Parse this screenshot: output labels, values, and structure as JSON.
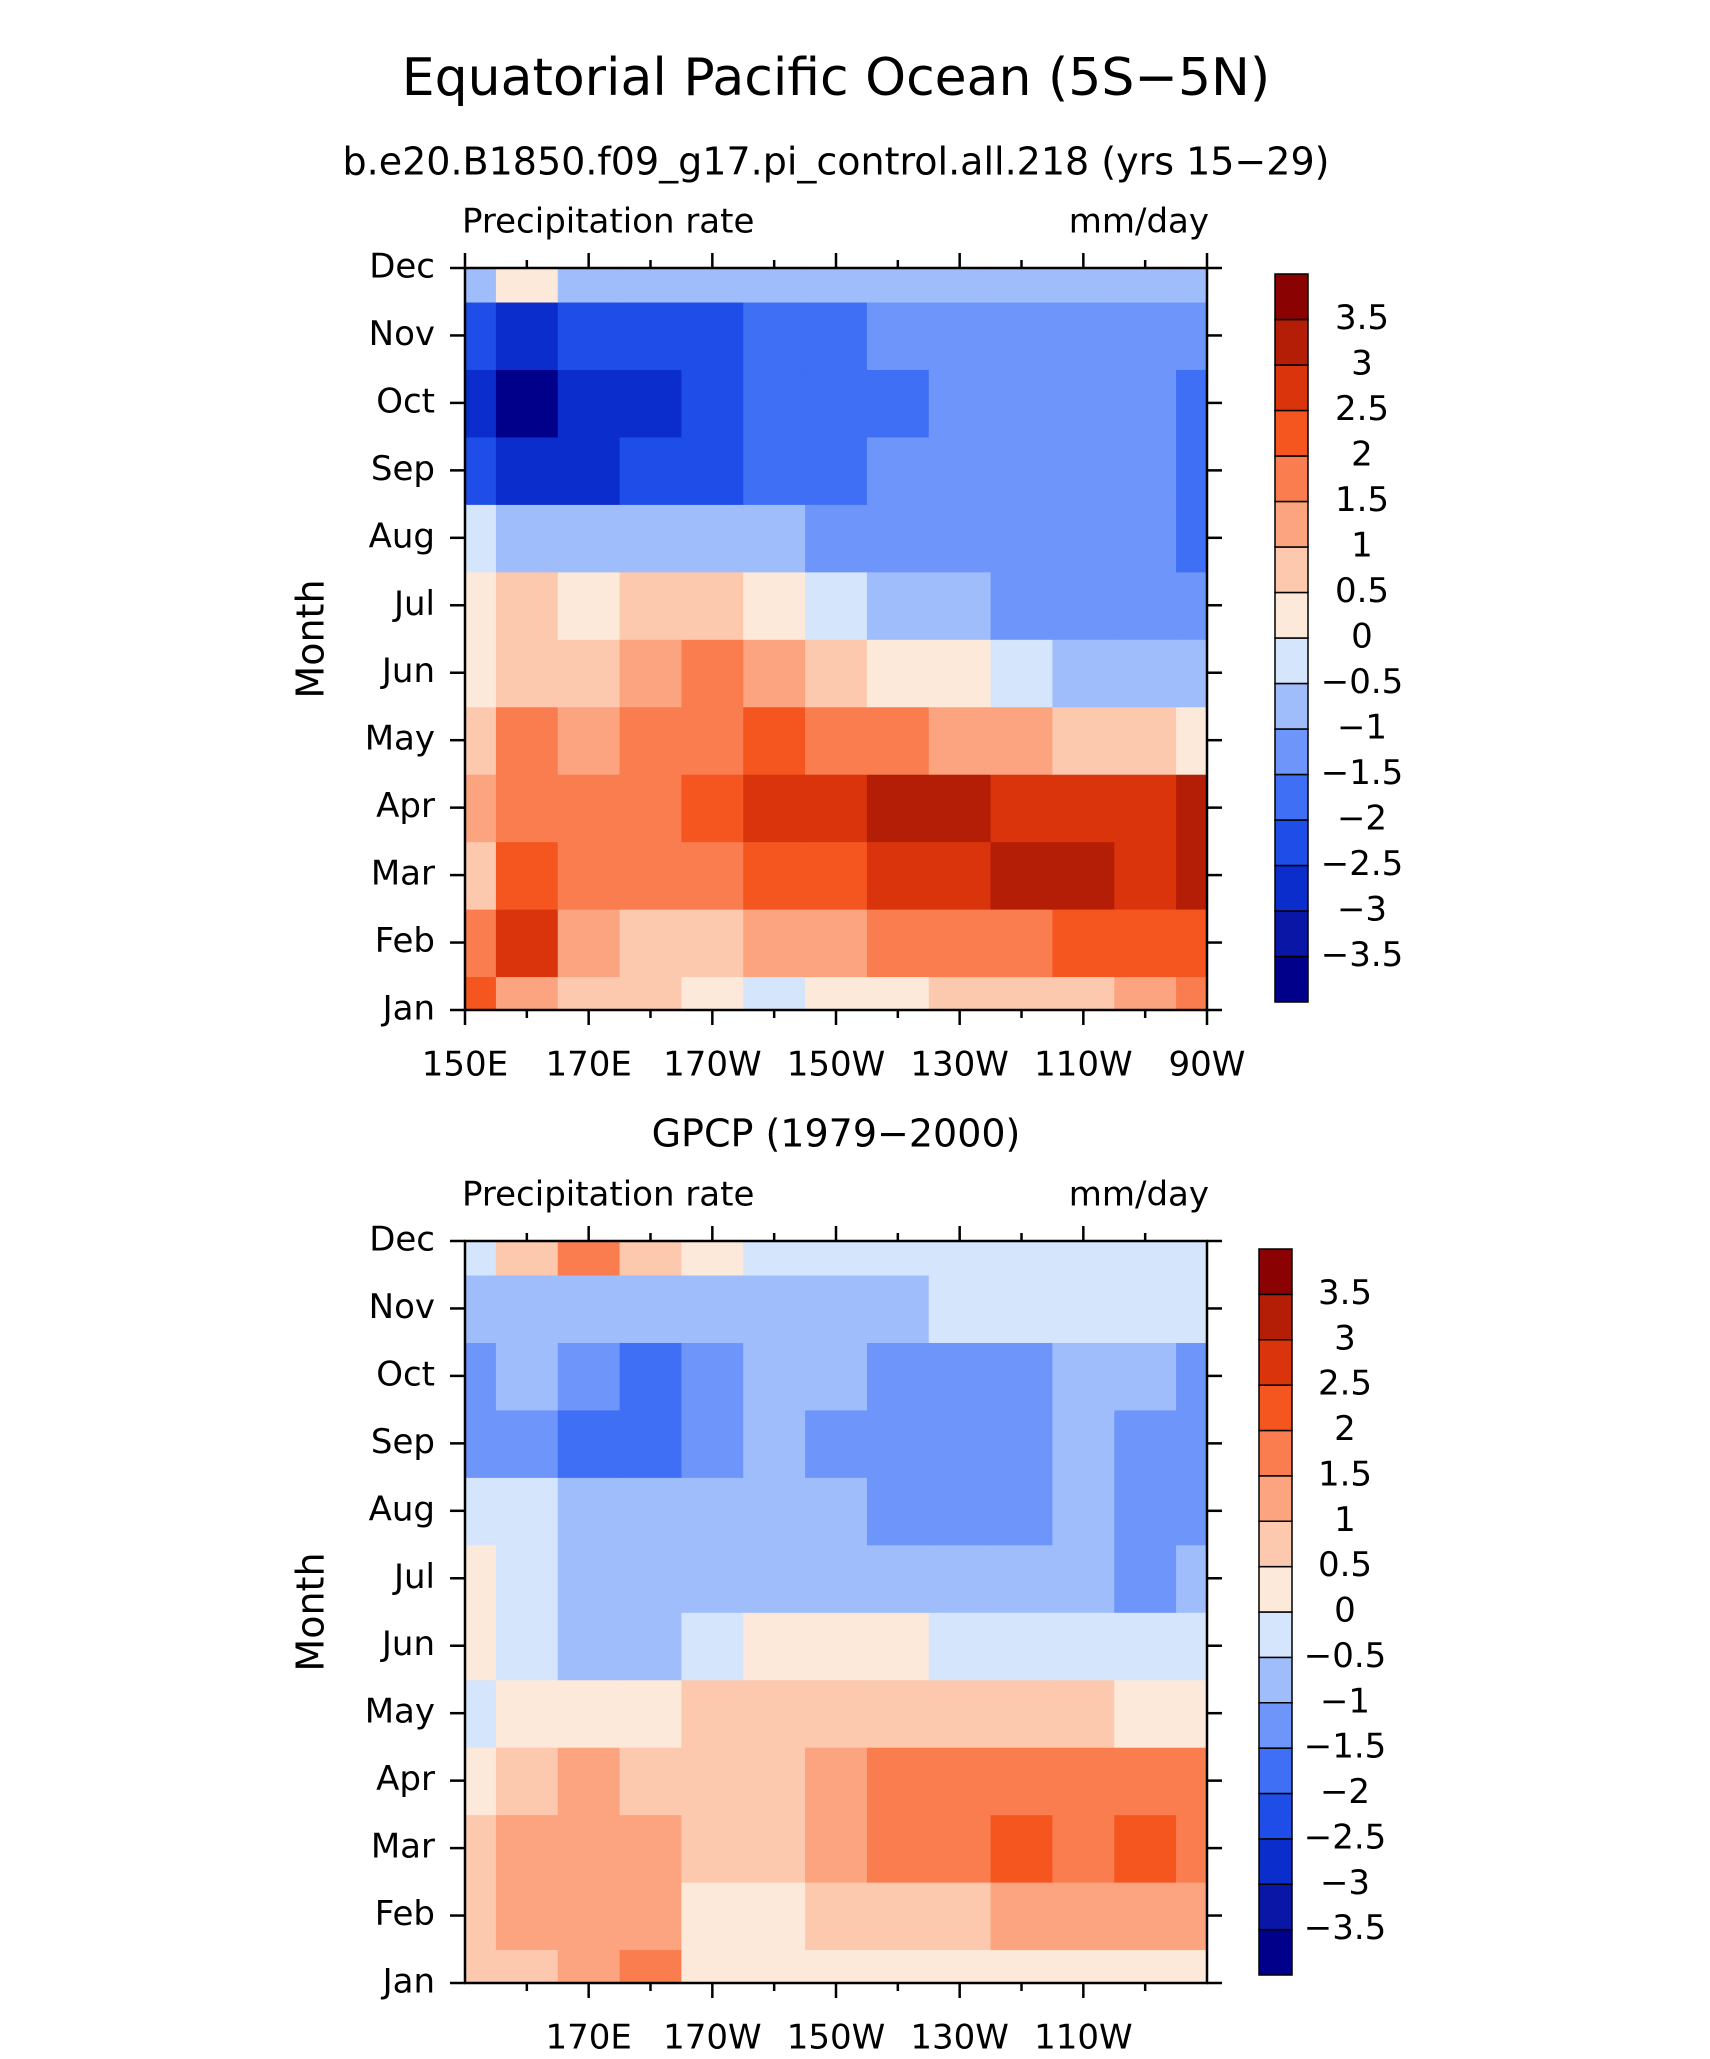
{
  "title": "Equatorial Pacific Ocean (5S−5N)",
  "chart_data": [
    {
      "type": "contour",
      "title": "b.e20.B1850.f09_g17.pi_control.all.218 (yrs 15−29)",
      "left_label": "Precipitation rate",
      "right_label": "mm/day",
      "ylabel": "Month",
      "categories": [
        "Jan",
        "Feb",
        "Mar",
        "Apr",
        "May",
        "Jun",
        "Jul",
        "Aug",
        "Sep",
        "Oct",
        "Nov",
        "Dec"
      ],
      "x": [
        150,
        160,
        170,
        180,
        190,
        200,
        210,
        220,
        230,
        240,
        250,
        260,
        270
      ],
      "xlim": [
        150,
        270
      ],
      "xticks": [
        {
          "value": 150,
          "label": "150E"
        },
        {
          "value": 170,
          "label": "170E"
        },
        {
          "value": 190,
          "label": "170W"
        },
        {
          "value": 210,
          "label": "150W"
        },
        {
          "value": 230,
          "label": "130W"
        },
        {
          "value": 250,
          "label": "110W"
        },
        {
          "value": 270,
          "label": "90W"
        }
      ],
      "xminorticks": [
        160,
        180,
        200,
        220,
        240,
        260
      ],
      "values": [
        [
          2,
          1,
          0.5,
          0.5,
          0,
          -0.3,
          0.2,
          0.3,
          0.5,
          0.7,
          0.8,
          1,
          1.5
        ],
        [
          1.5,
          2.8,
          1.2,
          0.8,
          0.8,
          1,
          1.2,
          1.5,
          1.7,
          1.8,
          2,
          2,
          2.2
        ],
        [
          0.5,
          2,
          1.8,
          1.7,
          1.8,
          2,
          2.3,
          2.5,
          2.8,
          3,
          3.1,
          2.5,
          3
        ],
        [
          1,
          1.8,
          1.5,
          1.7,
          2.2,
          2.5,
          2.8,
          3.1,
          3,
          2.7,
          2.6,
          2.5,
          3
        ],
        [
          0.8,
          1.7,
          1.4,
          1.6,
          1.8,
          2,
          1.8,
          1.6,
          1.3,
          1,
          0.7,
          0.5,
          0.3
        ],
        [
          0,
          0.6,
          0.8,
          1.3,
          1.6,
          1.2,
          0.8,
          0.4,
          0.1,
          -0.3,
          -0.6,
          -0.9,
          -0.7
        ],
        [
          0.3,
          0.5,
          0.2,
          0.6,
          0.7,
          0.3,
          -0.2,
          -0.6,
          -0.9,
          -1.1,
          -1.3,
          -1.5,
          -1.3
        ],
        [
          -0.3,
          -0.6,
          -0.9,
          -0.8,
          -0.7,
          -0.9,
          -1.1,
          -1.2,
          -1.3,
          -1.4,
          -1.4,
          -1.3,
          -2
        ],
        [
          -2.2,
          -2.8,
          -2.7,
          -2.4,
          -2.2,
          -1.9,
          -1.6,
          -1.5,
          -1.4,
          -1.3,
          -1.3,
          -1.3,
          -1.7
        ],
        [
          -2.6,
          -3.6,
          -3,
          -2.6,
          -2.3,
          -2,
          -1.8,
          -1.6,
          -1.4,
          -1.3,
          -1.3,
          -1.3,
          -1.9
        ],
        [
          -2.1,
          -2.6,
          -2.5,
          -2.3,
          -2.1,
          -1.7,
          -1.6,
          -1.3,
          -1.2,
          -1.1,
          -1.1,
          -1.2,
          -1.3
        ],
        [
          -0.7,
          0.1,
          -0.8,
          -1,
          -1,
          -1,
          -0.9,
          -0.8,
          -0.8,
          -0.8,
          -0.7,
          -0.6,
          -0.6
        ]
      ],
      "levels": [
        {
          "value": -3.5,
          "label": "−3.5"
        },
        {
          "value": -3,
          "label": "−3"
        },
        {
          "value": -2.5,
          "label": "−2.5"
        },
        {
          "value": -2,
          "label": "−2"
        },
        {
          "value": -1.5,
          "label": "−1.5"
        },
        {
          "value": -1,
          "label": "−1"
        },
        {
          "value": -0.5,
          "label": "−0.5"
        },
        0,
        0.5,
        1,
        1.5,
        2,
        2.5,
        3,
        3.5
      ],
      "colors": [
        "#00008a",
        "#0a16a6",
        "#0a2dcc",
        "#1f4de8",
        "#3f6ff4",
        "#6e95f9",
        "#a0bdfb",
        "#d4e5fc",
        "#fde9d9",
        "#fcc8ae",
        "#fba47f",
        "#f97d4f",
        "#f5561f",
        "#da340c",
        "#b41e06",
        "#8b0202"
      ]
    },
    {
      "type": "contour",
      "title": "GPCP (1979−2000)",
      "left_label": "Precipitation rate",
      "right_label": "mm/day",
      "ylabel": "Month",
      "categories": [
        "Jan",
        "Feb",
        "Mar",
        "Apr",
        "May",
        "Jun",
        "Jul",
        "Aug",
        "Sep",
        "Oct",
        "Nov",
        "Dec"
      ],
      "x": [
        150,
        160,
        170,
        180,
        190,
        200,
        210,
        220,
        230,
        240,
        250,
        260,
        270
      ],
      "xlim": [
        150,
        270
      ],
      "xticks": [
        {
          "value": 170,
          "label": "170E"
        },
        {
          "value": 190,
          "label": "170W"
        },
        {
          "value": 210,
          "label": "150W"
        },
        {
          "value": 230,
          "label": "130W"
        },
        {
          "value": 250,
          "label": "110W"
        }
      ],
      "xminorticks": [
        160,
        180,
        200,
        220,
        240,
        260
      ],
      "values": [
        [
          0.5,
          0.8,
          1.3,
          1.5,
          0.3,
          0.2,
          0.2,
          0.2,
          0.3,
          0.3,
          0.2,
          0.3,
          0.4
        ],
        [
          0.8,
          1.2,
          1.2,
          1,
          0.3,
          0.4,
          0.6,
          0.8,
          0.9,
          1,
          1.1,
          1.2,
          1.4
        ],
        [
          0.5,
          1,
          1.2,
          1,
          0.6,
          0.8,
          1.2,
          1.6,
          1.8,
          2.1,
          1.7,
          2.1,
          1.7
        ],
        [
          0.3,
          0.8,
          1,
          0.9,
          0.8,
          0.9,
          1.3,
          1.6,
          1.8,
          1.8,
          1.7,
          1.9,
          1.8
        ],
        [
          -0.3,
          0.3,
          0.4,
          0.2,
          0.5,
          0.6,
          0.7,
          0.7,
          0.8,
          0.6,
          0.5,
          0.3,
          0.1
        ],
        [
          0.2,
          -0.4,
          -0.6,
          -0.8,
          -0.3,
          0.2,
          0.2,
          0.1,
          -0.2,
          -0.3,
          -0.4,
          -0.4,
          -0.3
        ],
        [
          0.3,
          -0.3,
          -0.8,
          -0.8,
          -0.7,
          -0.6,
          -0.7,
          -0.8,
          -0.8,
          -0.7,
          -0.7,
          -1.2,
          -0.9
        ],
        [
          -0.1,
          -0.5,
          -0.7,
          -0.8,
          -0.9,
          -0.8,
          -0.9,
          -1.2,
          -1.2,
          -1.1,
          -0.8,
          -1.2,
          -1.1
        ],
        [
          -1.2,
          -1.2,
          -1.7,
          -1.6,
          -1.1,
          -1,
          -1.2,
          -1.3,
          -1.3,
          -1.2,
          -0.9,
          -1.1,
          -1.2
        ],
        [
          -1.1,
          -0.9,
          -1.3,
          -1.6,
          -1.1,
          -0.9,
          -1,
          -1.1,
          -1.1,
          -1.1,
          -0.8,
          -0.9,
          -1.1
        ],
        [
          -1,
          -0.8,
          -0.7,
          -0.7,
          -0.8,
          -0.7,
          -0.7,
          -0.6,
          -0.5,
          -0.5,
          -0.5,
          -0.5,
          -0.5
        ],
        [
          -0.3,
          0.5,
          1.5,
          0.6,
          0.2,
          -0.2,
          -0.4,
          -0.4,
          -0.4,
          -0.4,
          -0.4,
          -0.4,
          -0.4
        ]
      ],
      "levels": [
        {
          "value": -3.5,
          "label": "−3.5"
        },
        {
          "value": -3,
          "label": "−3"
        },
        {
          "value": -2.5,
          "label": "−2.5"
        },
        {
          "value": -2,
          "label": "−2"
        },
        {
          "value": -1.5,
          "label": "−1.5"
        },
        {
          "value": -1,
          "label": "−1"
        },
        {
          "value": -0.5,
          "label": "−0.5"
        },
        0,
        0.5,
        1,
        1.5,
        2,
        2.5,
        3,
        3.5
      ],
      "colors": [
        "#00008a",
        "#0a16a6",
        "#0a2dcc",
        "#1f4de8",
        "#3f6ff4",
        "#6e95f9",
        "#a0bdfb",
        "#d4e5fc",
        "#fde9d9",
        "#fcc8ae",
        "#fba47f",
        "#f97d4f",
        "#f5561f",
        "#da340c",
        "#b41e06",
        "#8b0202"
      ]
    }
  ]
}
